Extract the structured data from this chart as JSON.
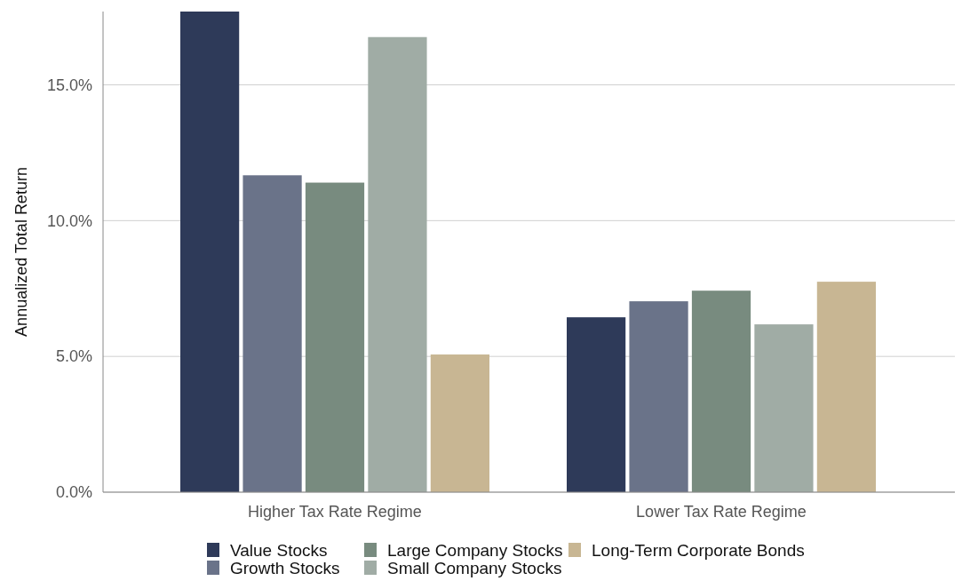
{
  "chart_data": {
    "type": "bar",
    "ylabel": "Annualized Total Return",
    "categories": [
      "Higher Tax Rate Regime",
      "Lower Tax Rate Regime"
    ],
    "series": [
      {
        "name": "Value Stocks",
        "color": "#2e3a59",
        "values": [
          17.7,
          6.44
        ]
      },
      {
        "name": "Growth Stocks",
        "color": "#6a7389",
        "values": [
          11.67,
          7.03
        ]
      },
      {
        "name": "Large Company Stocks",
        "color": "#788b7f",
        "values": [
          11.4,
          7.42
        ]
      },
      {
        "name": "Small Company Stocks",
        "color": "#a0aca5",
        "values": [
          16.76,
          6.18
        ]
      },
      {
        "name": "Long-Term Corporate Bonds",
        "color": "#c8b693",
        "values": [
          5.07,
          7.75
        ]
      }
    ],
    "ylim": [
      0,
      17.7
    ],
    "yticks": [
      {
        "value": 0,
        "label": "0.0%"
      },
      {
        "value": 5,
        "label": "5.0%"
      },
      {
        "value": 10,
        "label": "10.0%"
      },
      {
        "value": 15,
        "label": "15.0%"
      }
    ],
    "grid": "y",
    "legend": "bottom"
  }
}
